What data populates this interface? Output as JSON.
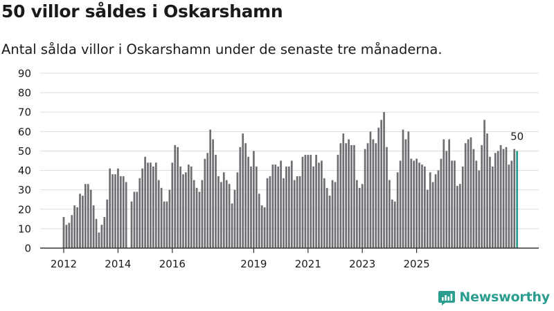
{
  "header": {
    "title": "50 villor såldes i Oskarshamn",
    "subtitle": "Antal sålda villor i Oskarshamn under de senaste tre månaderna."
  },
  "brand": {
    "name": "Newsworthy"
  },
  "colors": {
    "bar": "#6e6d72",
    "highlight": "#2a9d8f",
    "grid": "#dcdcdc",
    "axis": "#333333"
  },
  "chart_data": {
    "type": "bar",
    "title": "50 villor såldes i Oskarshamn",
    "xlabel": "",
    "ylabel": "",
    "ylim": [
      0,
      90
    ],
    "yticks": [
      0,
      10,
      20,
      30,
      40,
      50,
      60,
      70,
      80,
      90
    ],
    "xticks": [
      {
        "label": "2012",
        "index": 0
      },
      {
        "label": "2014",
        "index": 20
      },
      {
        "label": "2016",
        "index": 40
      },
      {
        "label": "2019",
        "index": 70
      },
      {
        "label": "2021",
        "index": 90
      },
      {
        "label": "2023",
        "index": 110
      },
      {
        "label": "2025",
        "index": 130
      }
    ],
    "last_value_label": "50",
    "values": [
      16,
      12,
      13,
      17,
      22,
      21,
      28,
      27,
      33,
      33,
      30,
      22,
      15,
      8,
      12,
      16,
      25,
      41,
      38,
      38,
      41,
      37,
      37,
      34,
      0,
      24,
      29,
      29,
      36,
      41,
      47,
      44,
      44,
      42,
      44,
      35,
      31,
      24,
      24,
      30,
      44,
      53,
      52,
      42,
      38,
      39,
      43,
      42,
      35,
      31,
      29,
      35,
      46,
      49,
      61,
      56,
      48,
      37,
      34,
      39,
      35,
      33,
      23,
      30,
      39,
      52,
      59,
      54,
      47,
      42,
      50,
      42,
      28,
      22,
      21,
      36,
      37,
      43,
      43,
      42,
      45,
      36,
      42,
      42,
      45,
      35,
      37,
      37,
      47,
      48,
      48,
      48,
      42,
      48,
      44,
      45,
      36,
      31,
      27,
      35,
      34,
      48,
      54,
      59,
      54,
      56,
      53,
      53,
      35,
      31,
      33,
      51,
      54,
      60,
      56,
      54,
      62,
      66,
      70,
      52,
      35,
      25,
      24,
      39,
      45,
      61,
      56,
      60,
      46,
      45,
      46,
      44,
      43,
      42,
      30,
      39,
      34,
      38,
      40,
      46,
      56,
      50,
      56,
      45,
      45,
      32,
      33,
      42,
      54,
      56,
      57,
      51,
      45,
      40,
      53,
      66,
      59,
      47,
      42,
      49,
      50,
      53,
      51,
      52,
      43,
      45,
      51,
      50
    ]
  }
}
